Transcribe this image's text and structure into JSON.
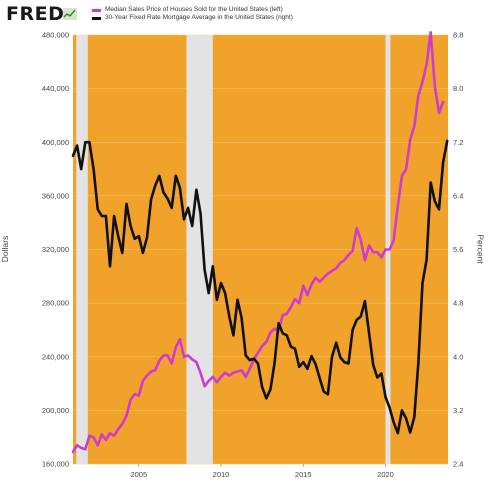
{
  "header": {
    "brand": "FRED",
    "brand_icon": "line-graph-icon"
  },
  "colors": {
    "background": "#f0a22a",
    "recession": "#e3e3e3",
    "series_house": "#cc3ccf",
    "series_mortgage": "#111111"
  },
  "chart_data": {
    "type": "line",
    "xlabel": "",
    "x_ticks": [
      "2005",
      "2010",
      "2015",
      "2020"
    ],
    "x_range": [
      2001.0,
      2023.8
    ],
    "left_axis": {
      "label": "Dollars",
      "range": [
        160000,
        480000
      ],
      "ticks": [
        "160,000",
        "200,000",
        "240,000",
        "280,000",
        "320,000",
        "360,000",
        "400,000",
        "440,000",
        "480,000"
      ]
    },
    "right_axis": {
      "label": "Percent",
      "range": [
        2.4,
        8.8
      ],
      "ticks": [
        "2.4",
        "3.2",
        "4.0",
        "4.8",
        "5.6",
        "6.4",
        "7.2",
        "8.0",
        "8.8"
      ]
    },
    "recessions": [
      [
        2001.2,
        2001.9
      ],
      [
        2007.9,
        2009.5
      ],
      [
        2020.0,
        2020.3
      ]
    ],
    "grid": true,
    "legend": "top",
    "series": [
      {
        "name": "Median Sales Price of Houses Sold for the United States (left)",
        "axis": "left",
        "x": [
          2001.0,
          2001.25,
          2001.5,
          2001.75,
          2002.0,
          2002.25,
          2002.5,
          2002.75,
          2003.0,
          2003.25,
          2003.5,
          2003.75,
          2004.0,
          2004.25,
          2004.5,
          2004.75,
          2005.0,
          2005.25,
          2005.5,
          2005.75,
          2006.0,
          2006.25,
          2006.5,
          2006.75,
          2007.0,
          2007.25,
          2007.5,
          2007.75,
          2008.0,
          2008.25,
          2008.5,
          2008.75,
          2009.0,
          2009.25,
          2009.5,
          2009.75,
          2010.0,
          2010.25,
          2010.5,
          2010.75,
          2011.0,
          2011.25,
          2011.5,
          2011.75,
          2012.0,
          2012.25,
          2012.5,
          2012.75,
          2013.0,
          2013.25,
          2013.5,
          2013.75,
          2014.0,
          2014.25,
          2014.5,
          2014.75,
          2015.0,
          2015.25,
          2015.5,
          2015.75,
          2016.0,
          2016.25,
          2016.5,
          2016.75,
          2017.0,
          2017.25,
          2017.5,
          2017.75,
          2018.0,
          2018.25,
          2018.5,
          2018.75,
          2019.0,
          2019.25,
          2019.5,
          2019.75,
          2020.0,
          2020.25,
          2020.5,
          2020.75,
          2021.0,
          2021.25,
          2021.5,
          2021.75,
          2022.0,
          2022.25,
          2022.5,
          2022.75,
          2023.0,
          2023.25,
          2023.5
        ],
        "values": [
          169000,
          174000,
          172000,
          171000,
          181000,
          180000,
          174000,
          182000,
          178000,
          183000,
          181000,
          186000,
          190000,
          196000,
          208000,
          212000,
          211000,
          222000,
          226000,
          229000,
          230000,
          237000,
          241000,
          241000,
          235000,
          247000,
          253000,
          240000,
          241000,
          238000,
          236000,
          228000,
          218000,
          222000,
          225000,
          221000,
          225000,
          228000,
          226000,
          228000,
          229000,
          230000,
          225000,
          231000,
          238000,
          243000,
          248000,
          251000,
          258000,
          261000,
          259000,
          271000,
          272000,
          277000,
          283000,
          280000,
          293000,
          286000,
          294000,
          299000,
          296000,
          299000,
          302000,
          304000,
          306000,
          310000,
          312000,
          316000,
          319000,
          336000,
          327000,
          312000,
          323000,
          318000,
          318000,
          314000,
          320000,
          320000,
          327000,
          352000,
          375000,
          380000,
          402000,
          412000,
          435000,
          445000,
          458000,
          482000,
          442000,
          422000,
          430000
        ]
      },
      {
        "name": "30-Year Fixed Rate Mortgage Average in the United States (right)",
        "axis": "right",
        "x": [
          2001.0,
          2001.25,
          2001.5,
          2001.75,
          2002.0,
          2002.25,
          2002.5,
          2002.75,
          2003.0,
          2003.25,
          2003.5,
          2003.75,
          2004.0,
          2004.25,
          2004.5,
          2004.75,
          2005.0,
          2005.25,
          2005.5,
          2005.75,
          2006.0,
          2006.25,
          2006.5,
          2006.75,
          2007.0,
          2007.25,
          2007.5,
          2007.75,
          2008.0,
          2008.25,
          2008.5,
          2008.75,
          2009.0,
          2009.25,
          2009.5,
          2009.75,
          2010.0,
          2010.25,
          2010.5,
          2010.75,
          2011.0,
          2011.25,
          2011.5,
          2011.75,
          2012.0,
          2012.25,
          2012.5,
          2012.75,
          2013.0,
          2013.25,
          2013.5,
          2013.75,
          2014.0,
          2014.25,
          2014.5,
          2014.75,
          2015.0,
          2015.25,
          2015.5,
          2015.75,
          2016.0,
          2016.25,
          2016.5,
          2016.75,
          2017.0,
          2017.25,
          2017.5,
          2017.75,
          2018.0,
          2018.25,
          2018.5,
          2018.75,
          2019.0,
          2019.25,
          2019.5,
          2019.75,
          2020.0,
          2020.25,
          2020.5,
          2020.75,
          2021.0,
          2021.25,
          2021.5,
          2021.75,
          2022.0,
          2022.25,
          2022.5,
          2022.75,
          2023.0,
          2023.25,
          2023.5,
          2023.75
        ],
        "values": [
          7.0,
          7.15,
          6.8,
          7.2,
          7.2,
          6.8,
          6.2,
          6.1,
          6.1,
          5.35,
          6.1,
          5.8,
          5.55,
          6.28,
          5.95,
          5.76,
          5.8,
          5.55,
          5.78,
          6.35,
          6.55,
          6.7,
          6.45,
          6.36,
          6.22,
          6.7,
          6.52,
          6.05,
          6.22,
          5.95,
          6.49,
          6.14,
          5.3,
          4.95,
          5.35,
          4.85,
          5.1,
          4.95,
          4.6,
          4.32,
          4.85,
          4.58,
          4.02,
          3.95,
          3.97,
          3.9,
          3.55,
          3.38,
          3.51,
          3.9,
          4.5,
          4.35,
          4.32,
          4.15,
          4.12,
          3.85,
          3.92,
          3.82,
          4.01,
          3.89,
          3.68,
          3.48,
          3.44,
          4.0,
          4.21,
          3.99,
          3.92,
          3.9,
          4.4,
          4.55,
          4.6,
          4.83,
          4.35,
          3.88,
          3.69,
          3.75,
          3.4,
          3.24,
          3.02,
          2.86,
          3.2,
          3.08,
          2.87,
          3.1,
          3.92,
          5.1,
          5.45,
          6.6,
          6.32,
          6.2,
          6.9,
          7.22
        ]
      }
    ]
  }
}
